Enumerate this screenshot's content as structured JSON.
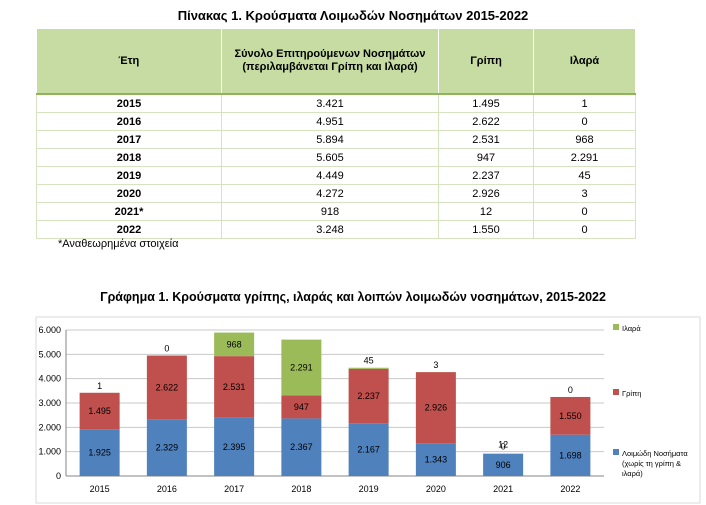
{
  "table": {
    "title": "Πίνακας 1. Κρούσματα Λοιμωδών Νοσημάτων 2015-2022",
    "headers": [
      "Έτη",
      "Σύνολο Επιτηρούμενων Νοσημάτων (περιλαμβάνεται Γρίπη και Ιλαρά)",
      "Γρίπη",
      "Ιλαρά"
    ],
    "rows": [
      [
        "2015",
        "3.421",
        "1.495",
        "1"
      ],
      [
        "2016",
        "4.951",
        "2.622",
        "0"
      ],
      [
        "2017",
        "5.894",
        "2.531",
        "968"
      ],
      [
        "2018",
        "5.605",
        "947",
        "2.291"
      ],
      [
        "2019",
        "4.449",
        "2.237",
        "45"
      ],
      [
        "2020",
        "4.272",
        "2.926",
        "3"
      ],
      [
        "2021*",
        "918",
        "12",
        "0"
      ],
      [
        "2022",
        "3.248",
        "1.550",
        "0"
      ]
    ],
    "note": "*Αναθεωρημένα στοιχεία"
  },
  "colors": {
    "header_bg": "#c6dca2",
    "other": "#4f81bd",
    "flu": "#c0504d",
    "measles": "#9bbb59"
  },
  "chart_data": {
    "type": "bar",
    "stacked": true,
    "title": "Γράφημα 1. Κρούσματα γρίπης, ιλαράς και λοιπών λοιμωδών νοσημάτων, 2015-2022",
    "categories": [
      "2015",
      "2016",
      "2017",
      "2018",
      "2019",
      "2020",
      "2021",
      "2022"
    ],
    "series": [
      {
        "name": "Λοιμώδη Νοσήματα (χωρίς τη γρίπη & ιλαρά)",
        "color": "#4f81bd",
        "values": [
          1925,
          2329,
          2395,
          2367,
          2167,
          1343,
          906,
          1698
        ],
        "labels": [
          "1.925",
          "2.329",
          "2.395",
          "2.367",
          "2.167",
          "1.343",
          "906",
          "1.698"
        ]
      },
      {
        "name": "Γρίπη",
        "color": "#c0504d",
        "values": [
          1495,
          2622,
          2531,
          947,
          2237,
          2926,
          12,
          1550
        ],
        "labels": [
          "1.495",
          "2.622",
          "2.531",
          "947",
          "2.237",
          "2.926",
          "12",
          "1.550"
        ]
      },
      {
        "name": "Ιλαρά",
        "color": "#9bbb59",
        "values": [
          1,
          0,
          968,
          2291,
          45,
          3,
          0,
          0
        ],
        "labels": [
          "1",
          "0",
          "968",
          "2.291",
          "45",
          "3",
          "0",
          "0"
        ]
      }
    ],
    "ylim": [
      0,
      6000
    ],
    "yticks": [
      "0",
      "1.000",
      "2.000",
      "3.000",
      "4.000",
      "5.000",
      "6.000"
    ],
    "grid": true,
    "legend_position": "right"
  }
}
